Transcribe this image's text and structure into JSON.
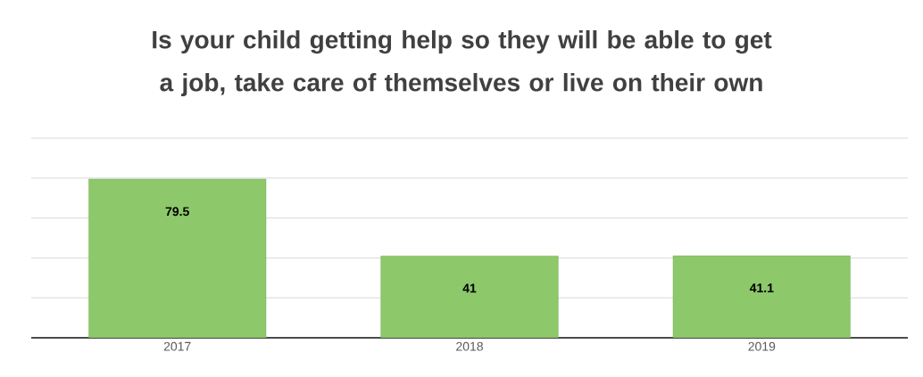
{
  "chart_data": {
    "type": "bar",
    "title": "Is your child getting help so they will be able to get a job, take care of themselves or live on their own",
    "categories": [
      "2017",
      "2018",
      "2019"
    ],
    "values": [
      79.5,
      41,
      41.1
    ],
    "color": "#8dc86a",
    "ylim": [
      0,
      100
    ],
    "yticks": [
      {
        "value": 20,
        "label": null
      },
      {
        "value": 40,
        "label": null
      },
      {
        "value": 60,
        "label": null
      },
      {
        "value": 80,
        "label": null
      },
      {
        "value": 100,
        "label": null
      }
    ],
    "tick_labels": "x",
    "grid": "y",
    "data_labels": true
  }
}
